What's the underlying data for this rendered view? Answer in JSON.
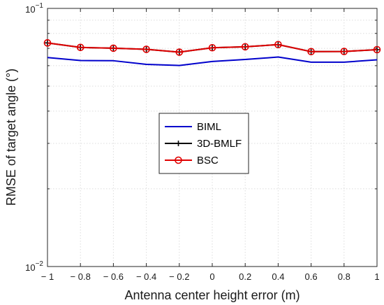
{
  "chart_data": {
    "type": "line",
    "xlabel": "Antenna center height error (m)",
    "ylabel": "RMSE of target angle (°)",
    "x": [
      -1,
      -0.8,
      -0.6,
      -0.4,
      -0.2,
      0,
      0.2,
      0.4,
      0.6,
      0.8,
      1
    ],
    "x_tick_labels": [
      "− 1",
      "− 0.8",
      "− 0.6",
      "− 0.4",
      "− 0.2",
      "0",
      "0.2",
      "0.4",
      "0.6",
      "0.8",
      "1"
    ],
    "xlim": [
      -1,
      1
    ],
    "yscale": "log",
    "ylim": [
      0.01,
      0.1
    ],
    "y_tick_labels": [
      {
        "base": "10",
        "exp": "−2",
        "value": 0.01
      },
      {
        "base": "10",
        "exp": "−1",
        "value": 0.1
      }
    ],
    "grid": true,
    "legend_position": "center",
    "series": [
      {
        "name": "BIML",
        "color": "#0000cc",
        "marker": "none",
        "values": [
          0.0645,
          0.0628,
          0.0627,
          0.0607,
          0.0601,
          0.0623,
          0.0634,
          0.0648,
          0.0619,
          0.0619,
          0.0632
        ]
      },
      {
        "name": "3D-BMLF",
        "color": "#000000",
        "marker": "plus",
        "values": [
          0.0735,
          0.0706,
          0.0701,
          0.0694,
          0.0677,
          0.0704,
          0.071,
          0.0724,
          0.068,
          0.0681,
          0.0692
        ]
      },
      {
        "name": "BSC",
        "color": "#e00000",
        "marker": "circle",
        "values": [
          0.0735,
          0.0706,
          0.0701,
          0.0694,
          0.0677,
          0.0704,
          0.071,
          0.0724,
          0.068,
          0.0681,
          0.0692
        ]
      }
    ]
  }
}
